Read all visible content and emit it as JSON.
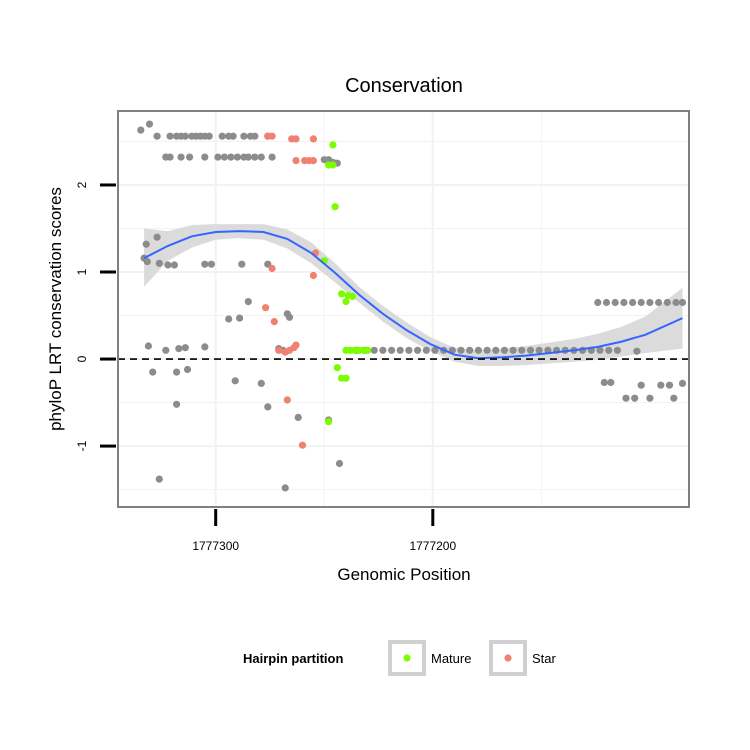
{
  "chart_data": {
    "type": "scatter",
    "title": "Conservation",
    "xlabel": "Genomic Position",
    "ylabel": "phyloP LRT conservation scores",
    "x_reversed": true,
    "xlim": [
      1777345,
      1777082
    ],
    "ylim": [
      -1.7,
      2.85
    ],
    "x_ticks": [
      1777300,
      1777200
    ],
    "x_tick_labels": [
      "1777300",
      "1777200"
    ],
    "y_ticks": [
      -1,
      0,
      1,
      2
    ],
    "y_tick_labels": [
      "-1",
      "0",
      "1",
      "2"
    ],
    "grid": true,
    "reference_line": {
      "y": 0,
      "style": "dashed"
    },
    "colors": {
      "other": "#8c8c8c",
      "Mature": "#7cfc00",
      "Star": "#f08070",
      "smooth": "#3366ff",
      "ribbon": "#d9d9d9",
      "panel_border": "#808080",
      "grid": "#f2f2f2"
    },
    "legend": {
      "title": "Hairpin partition",
      "position": "bottom",
      "entries": [
        {
          "name": "Mature",
          "color": "#7cfc00"
        },
        {
          "name": "Star",
          "color": "#f08070"
        }
      ]
    },
    "series": [
      {
        "name": "Other",
        "points": [
          [
            1777334.5,
            2.63
          ],
          [
            1777330.5,
            2.7
          ],
          [
            1777327,
            2.56
          ],
          [
            1777321,
            2.56
          ],
          [
            1777318,
            2.56
          ],
          [
            1777316,
            2.56
          ],
          [
            1777314,
            2.56
          ],
          [
            1777311,
            2.56
          ],
          [
            1777309,
            2.56
          ],
          [
            1777307,
            2.56
          ],
          [
            1777305,
            2.56
          ],
          [
            1777303,
            2.56
          ],
          [
            1777297,
            2.56
          ],
          [
            1777294,
            2.56
          ],
          [
            1777292,
            2.56
          ],
          [
            1777287,
            2.56
          ],
          [
            1777284,
            2.56
          ],
          [
            1777282,
            2.56
          ],
          [
            1777276,
            2.56
          ],
          [
            1777323,
            2.32
          ],
          [
            1777321,
            2.32
          ],
          [
            1777316,
            2.32
          ],
          [
            1777312,
            2.32
          ],
          [
            1777305,
            2.32
          ],
          [
            1777299,
            2.32
          ],
          [
            1777296,
            2.32
          ],
          [
            1777293,
            2.32
          ],
          [
            1777290,
            2.32
          ],
          [
            1777287,
            2.32
          ],
          [
            1777285,
            2.32
          ],
          [
            1777282,
            2.32
          ],
          [
            1777279,
            2.32
          ],
          [
            1777274,
            2.32
          ],
          [
            1777250,
            2.29
          ],
          [
            1777248,
            2.29
          ],
          [
            1777246,
            2.26
          ],
          [
            1777244,
            2.25
          ],
          [
            1777332,
            1.32
          ],
          [
            1777327,
            1.4
          ],
          [
            1777333,
            1.16
          ],
          [
            1777331.5,
            1.12
          ],
          [
            1777326,
            1.1
          ],
          [
            1777322,
            1.08
          ],
          [
            1777319,
            1.08
          ],
          [
            1777305,
            1.09
          ],
          [
            1777302,
            1.09
          ],
          [
            1777288,
            1.09
          ],
          [
            1777276,
            1.09
          ],
          [
            1777285,
            0.66
          ],
          [
            1777289,
            0.47
          ],
          [
            1777294,
            0.46
          ],
          [
            1777267,
            0.52
          ],
          [
            1777266,
            0.48
          ],
          [
            1777331,
            0.15
          ],
          [
            1777323,
            0.1
          ],
          [
            1777317,
            0.12
          ],
          [
            1777314,
            0.13
          ],
          [
            1777305,
            0.14
          ],
          [
            1777271,
            0.12
          ],
          [
            1777269,
            0.1
          ],
          [
            1777329,
            -0.15
          ],
          [
            1777318,
            -0.15
          ],
          [
            1777313,
            -0.12
          ],
          [
            1777291,
            -0.25
          ],
          [
            1777279,
            -0.28
          ],
          [
            1777318,
            -0.52
          ],
          [
            1777276,
            -0.55
          ],
          [
            1777262,
            -0.67
          ],
          [
            1777248,
            -0.7
          ],
          [
            1777326,
            -1.38
          ],
          [
            1777268,
            -1.48
          ],
          [
            1777243,
            -1.2
          ],
          [
            1777187,
            0.1
          ],
          [
            1777191,
            0.1
          ],
          [
            1777195,
            0.1
          ],
          [
            1777199,
            0.1
          ],
          [
            1777203,
            0.1
          ],
          [
            1777207,
            0.1
          ],
          [
            1777211,
            0.1
          ],
          [
            1777215,
            0.1
          ],
          [
            1777219,
            0.1
          ],
          [
            1777223,
            0.1
          ],
          [
            1777227,
            0.1
          ],
          [
            1777231,
            0.1
          ],
          [
            1777235,
            0.1
          ],
          [
            1777183,
            0.1
          ],
          [
            1777179,
            0.1
          ],
          [
            1777175,
            0.1
          ],
          [
            1777171,
            0.1
          ],
          [
            1777167,
            0.1
          ],
          [
            1777163,
            0.1
          ],
          [
            1777159,
            0.1
          ],
          [
            1777155,
            0.1
          ],
          [
            1777151,
            0.1
          ],
          [
            1777147,
            0.1
          ],
          [
            1777143,
            0.1
          ],
          [
            1777139,
            0.1
          ],
          [
            1777135,
            0.1
          ],
          [
            1777131,
            0.1
          ],
          [
            1777127,
            0.1
          ],
          [
            1777123,
            0.1
          ],
          [
            1777119,
            0.1
          ],
          [
            1777115,
            0.1
          ],
          [
            1777124,
            0.65
          ],
          [
            1777120,
            0.65
          ],
          [
            1777116,
            0.65
          ],
          [
            1777112,
            0.65
          ],
          [
            1777108,
            0.65
          ],
          [
            1777104,
            0.65
          ],
          [
            1777100,
            0.65
          ],
          [
            1777096,
            0.65
          ],
          [
            1777092,
            0.65
          ],
          [
            1777088,
            0.65
          ],
          [
            1777085,
            0.65
          ],
          [
            1777121,
            -0.27
          ],
          [
            1777118,
            -0.27
          ],
          [
            1777111,
            -0.45
          ],
          [
            1777107,
            -0.45
          ],
          [
            1777104,
            -0.3
          ],
          [
            1777100,
            -0.45
          ],
          [
            1777095,
            -0.3
          ],
          [
            1777091,
            -0.3
          ],
          [
            1777089,
            -0.45
          ],
          [
            1777085,
            -0.28
          ],
          [
            1777106,
            0.09
          ]
        ]
      },
      {
        "name": "Mature",
        "points": [
          [
            1777246,
            2.46
          ],
          [
            1777246,
            2.23
          ],
          [
            1777248,
            2.23
          ],
          [
            1777245,
            1.75
          ],
          [
            1777250,
            1.13
          ],
          [
            1777242,
            0.75
          ],
          [
            1777239,
            0.73
          ],
          [
            1777240,
            0.66
          ],
          [
            1777237,
            0.72
          ],
          [
            1777240,
            0.1
          ],
          [
            1777238,
            0.1
          ],
          [
            1777236,
            0.1
          ],
          [
            1777234,
            0.1
          ],
          [
            1777232,
            0.1
          ],
          [
            1777230,
            0.1
          ],
          [
            1777244,
            -0.1
          ],
          [
            1777242,
            -0.22
          ],
          [
            1777240,
            -0.22
          ],
          [
            1777248,
            -0.72
          ]
        ]
      },
      {
        "name": "Star",
        "points": [
          [
            1777276,
            2.56
          ],
          [
            1777274,
            2.56
          ],
          [
            1777265,
            2.53
          ],
          [
            1777263,
            2.53
          ],
          [
            1777255,
            2.53
          ],
          [
            1777263,
            2.28
          ],
          [
            1777259,
            2.28
          ],
          [
            1777257,
            2.28
          ],
          [
            1777255,
            2.28
          ],
          [
            1777254,
            1.22
          ],
          [
            1777274,
            1.04
          ],
          [
            1777255,
            0.96
          ],
          [
            1777277,
            0.59
          ],
          [
            1777273,
            0.43
          ],
          [
            1777271,
            0.1
          ],
          [
            1777268,
            0.08
          ],
          [
            1777266,
            0.1
          ],
          [
            1777264,
            0.13
          ],
          [
            1777263,
            0.16
          ],
          [
            1777267,
            -0.47
          ],
          [
            1777260,
            -0.99
          ]
        ]
      }
    ],
    "smooth": {
      "x": [
        1777333,
        1777322,
        1777311,
        1777300,
        1777289,
        1777278,
        1777267,
        1777256,
        1777245,
        1777234,
        1777223,
        1777212,
        1777201,
        1777190,
        1777179,
        1777168,
        1777157,
        1777146,
        1777135,
        1777124,
        1777113,
        1777102,
        1777085
      ],
      "y": [
        1.16,
        1.3,
        1.41,
        1.46,
        1.47,
        1.46,
        1.38,
        1.22,
        0.99,
        0.74,
        0.52,
        0.33,
        0.17,
        0.05,
        0.01,
        0.02,
        0.04,
        0.07,
        0.1,
        0.14,
        0.2,
        0.28,
        0.47
      ],
      "lo": [
        0.83,
        1.13,
        1.28,
        1.37,
        1.39,
        1.37,
        1.27,
        1.1,
        0.88,
        0.65,
        0.43,
        0.24,
        0.09,
        -0.03,
        -0.08,
        -0.08,
        -0.07,
        -0.05,
        -0.03,
        -0.01,
        0.03,
        0.07,
        0.12
      ],
      "hi": [
        1.5,
        1.47,
        1.54,
        1.55,
        1.55,
        1.55,
        1.49,
        1.34,
        1.1,
        0.83,
        0.61,
        0.42,
        0.25,
        0.13,
        0.1,
        0.12,
        0.15,
        0.19,
        0.23,
        0.29,
        0.37,
        0.49,
        0.82
      ]
    }
  }
}
